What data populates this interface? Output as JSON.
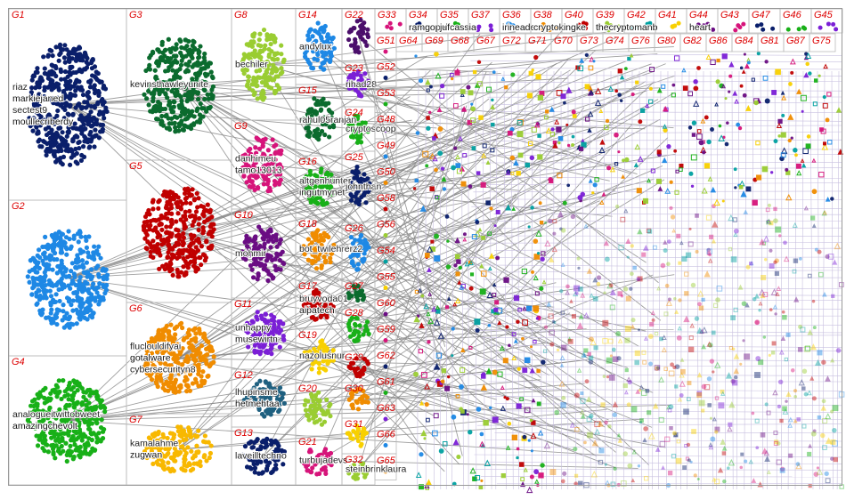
{
  "groups": [
    {
      "label": "G1",
      "names": [
        "riaz",
        "markiejaned",
        "sectest9",
        "moullecriberdy"
      ]
    },
    {
      "label": "G2",
      "names": []
    },
    {
      "label": "G4",
      "names": [
        "analogueitwittobweet",
        "amazingchevolt"
      ]
    },
    {
      "label": "G3",
      "names": [
        "kevinsthawleyunite"
      ]
    },
    {
      "label": "G5",
      "names": []
    },
    {
      "label": "G6",
      "names": [
        "fluclouldifyai",
        "gotalware",
        "cybersecurityn8"
      ]
    },
    {
      "label": "G7",
      "names": [
        "kamalahme",
        "zugwan"
      ]
    },
    {
      "label": "G8",
      "names": [
        "bechiler"
      ]
    },
    {
      "label": "G9",
      "names": [
        "danhimeu",
        "tamo13013"
      ]
    },
    {
      "label": "G10",
      "names": [
        "mohmir"
      ]
    },
    {
      "label": "G11",
      "names": [
        "unhappy",
        "musewirtn"
      ]
    },
    {
      "label": "G12",
      "names": [
        "lhupinsme",
        "hetmehtaa"
      ]
    },
    {
      "label": "G13",
      "names": [
        "laveilltechno"
      ]
    },
    {
      "label": "G14",
      "names": [
        "andylux"
      ]
    },
    {
      "label": "G15",
      "names": [
        "rahul05ranjan"
      ]
    },
    {
      "label": "G16",
      "names": [
        "altgenhunter",
        "ingutmynet"
      ]
    },
    {
      "label": "G18",
      "names": [
        "bot_twilehrerz2"
      ]
    },
    {
      "label": "G17",
      "names": [
        "bruyvoda01",
        "aipatech"
      ]
    },
    {
      "label": "G19",
      "names": [
        "nazolusnur"
      ]
    },
    {
      "label": "G20",
      "names": []
    },
    {
      "label": "G21",
      "names": [
        "turbujadevs"
      ]
    },
    {
      "label": "G22",
      "names": []
    },
    {
      "label": "G23",
      "names": [
        "rihad28"
      ]
    },
    {
      "label": "G24",
      "names": [
        "cryptoscoop"
      ]
    },
    {
      "label": "G25",
      "names": [
        "johnthan"
      ]
    },
    {
      "label": "G26",
      "names": []
    },
    {
      "label": "G27",
      "names": []
    },
    {
      "label": "G28",
      "names": []
    },
    {
      "label": "G29",
      "names": []
    },
    {
      "label": "G30",
      "names": []
    },
    {
      "label": "G31",
      "names": []
    },
    {
      "label": "G32",
      "names": [
        "steinbrinklaura"
      ]
    }
  ],
  "top_row": [
    {
      "label": "G33",
      "names": []
    },
    {
      "label": "G34",
      "names": [
        "ramgopal"
      ]
    },
    {
      "label": "G35",
      "names": [
        "jufcassia"
      ]
    },
    {
      "label": "G37",
      "names": []
    },
    {
      "label": "G36",
      "names": [
        "irineaden"
      ]
    },
    {
      "label": "G38",
      "names": [
        "cryptokingke"
      ]
    },
    {
      "label": "G40",
      "names": []
    },
    {
      "label": "G39",
      "names": [
        "thecryptomanb"
      ]
    },
    {
      "label": "G42",
      "names": []
    },
    {
      "label": "G41",
      "names": []
    },
    {
      "label": "G44",
      "names": [
        "heart"
      ]
    },
    {
      "label": "G43",
      "names": []
    },
    {
      "label": "G47",
      "names": []
    },
    {
      "label": "G46",
      "names": []
    },
    {
      "label": "G45",
      "names": []
    }
  ],
  "second_row": [
    "G64",
    "G69",
    "G68",
    "G67",
    "G72",
    "G71",
    "G70",
    "G73",
    "G74",
    "G76",
    "G80",
    "G82",
    "G86",
    "G84",
    "G81",
    "G87",
    "G75"
  ],
  "left_column": [
    "G51",
    "G52",
    "G53",
    "G48",
    "G49",
    "G50",
    "G58",
    "G56",
    "G54",
    "G55",
    "G60",
    "G59",
    "G62",
    "G61",
    "G63",
    "G66",
    "G65"
  ]
}
